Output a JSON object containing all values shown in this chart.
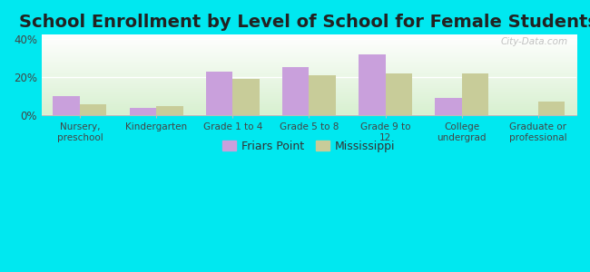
{
  "title": "School Enrollment by Level of School for Female Students",
  "categories": [
    "Nursery,\npreschool",
    "Kindergarten",
    "Grade 1 to 4",
    "Grade 5 to 8",
    "Grade 9 to\n12",
    "College\nundergrad",
    "Graduate or\nprofessional"
  ],
  "friars_point": [
    10,
    4,
    23,
    25,
    32,
    9,
    0
  ],
  "mississippi": [
    6,
    5,
    19,
    21,
    22,
    22,
    7
  ],
  "friars_color": "#c9a0dc",
  "mississippi_color": "#c8cc99",
  "background_color": "#00e8f0",
  "plot_bg_top": "#ffffff",
  "plot_bg_bottom": "#d8f0d0",
  "yticks": [
    0,
    20,
    40
  ],
  "ytick_labels": [
    "0%",
    "20%",
    "40%"
  ],
  "ylim": [
    0,
    42
  ],
  "title_fontsize": 14,
  "legend_labels": [
    "Friars Point",
    "Mississippi"
  ],
  "bar_width": 0.35,
  "watermark": "City-Data.com"
}
